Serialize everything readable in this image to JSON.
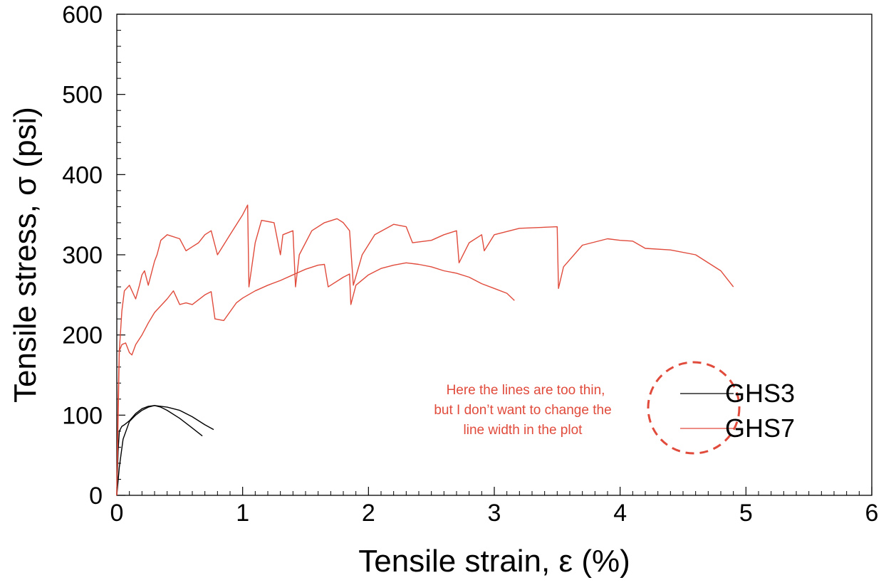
{
  "chart_data": {
    "type": "line",
    "title": "",
    "xlabel": "Tensile strain, ε (%)",
    "ylabel": "Tensile stress, σ (psi)",
    "xlim": [
      0,
      6
    ],
    "ylim": [
      0,
      600
    ],
    "x_ticks": [
      0,
      1,
      2,
      3,
      4,
      5,
      6
    ],
    "y_ticks": [
      0,
      100,
      200,
      300,
      400,
      500,
      600
    ],
    "x_tick_labels": [
      "0",
      "1",
      "2",
      "3",
      "4",
      "5",
      "6"
    ],
    "y_tick_labels": [
      "0",
      "100",
      "200",
      "300",
      "400",
      "500",
      "600"
    ],
    "grid": false,
    "legend_position": "right",
    "legend": [
      "GHS3",
      "GHS7"
    ],
    "colors": {
      "GHS3": "#000000",
      "GHS7": "#e04b3c",
      "annotation": "#e04b3c"
    },
    "annotation": {
      "lines": [
        "Here the lines are too thin,",
        "but I don’t want to change the",
        "line width in the plot"
      ]
    },
    "series": [
      {
        "name": "GHS3",
        "color": "#000000",
        "specimen": 1,
        "x": [
          0,
          0.01,
          0.02,
          0.04,
          0.06,
          0.1,
          0.15,
          0.2,
          0.25,
          0.3,
          0.35,
          0.4,
          0.5,
          0.6,
          0.68
        ],
        "y": [
          0,
          55,
          80,
          86,
          88,
          93,
          102,
          108,
          111,
          112,
          110,
          106,
          96,
          84,
          74
        ]
      },
      {
        "name": "GHS3",
        "color": "#000000",
        "specimen": 2,
        "x": [
          0,
          0.02,
          0.05,
          0.1,
          0.15,
          0.2,
          0.25,
          0.3,
          0.4,
          0.5,
          0.6,
          0.7,
          0.77
        ],
        "y": [
          0,
          35,
          70,
          92,
          100,
          106,
          110,
          112,
          110,
          106,
          98,
          88,
          82
        ]
      },
      {
        "name": "GHS7",
        "color": "#e04b3c",
        "specimen": 1,
        "x": [
          0,
          0.01,
          0.02,
          0.04,
          0.07,
          0.1,
          0.12,
          0.15,
          0.2,
          0.25,
          0.3,
          0.4,
          0.45,
          0.5,
          0.55,
          0.6,
          0.7,
          0.75,
          0.78,
          0.85,
          0.95,
          1.0,
          1.1,
          1.2,
          1.3,
          1.4,
          1.5,
          1.6,
          1.65,
          1.68,
          1.7,
          1.8,
          1.85,
          1.86,
          1.9,
          2.0,
          2.1,
          2.2,
          2.3,
          2.4,
          2.5,
          2.6,
          2.7,
          2.8,
          2.9,
          3.0,
          3.1,
          3.16
        ],
        "y": [
          0,
          120,
          180,
          188,
          190,
          178,
          175,
          188,
          200,
          215,
          228,
          245,
          255,
          238,
          240,
          238,
          250,
          254,
          220,
          218,
          240,
          246,
          255,
          262,
          268,
          275,
          282,
          287,
          288,
          260,
          262,
          272,
          276,
          238,
          262,
          275,
          283,
          287,
          290,
          288,
          285,
          280,
          277,
          272,
          264,
          258,
          252,
          243
        ]
      },
      {
        "name": "GHS7",
        "color": "#e04b3c",
        "specimen": 2,
        "x": [
          0,
          0.02,
          0.04,
          0.06,
          0.1,
          0.15,
          0.18,
          0.2,
          0.22,
          0.25,
          0.3,
          0.32,
          0.35,
          0.4,
          0.5,
          0.55,
          0.6,
          0.65,
          0.7,
          0.75,
          0.8,
          0.82,
          0.9,
          1.0,
          1.04,
          1.05,
          1.1,
          1.15,
          1.25,
          1.3,
          1.32,
          1.4,
          1.42,
          1.45,
          1.55,
          1.65,
          1.75,
          1.8,
          1.85,
          1.88,
          1.95,
          2.05,
          2.2,
          2.3,
          2.35,
          2.5,
          2.6,
          2.7,
          2.72,
          2.8,
          2.9,
          2.92,
          3.0,
          3.2,
          3.5,
          3.51,
          3.55,
          3.7,
          3.9,
          4.0,
          4.1,
          4.2,
          4.4,
          4.6,
          4.8,
          4.9
        ],
        "y": [
          0,
          180,
          230,
          255,
          262,
          245,
          262,
          275,
          280,
          262,
          292,
          300,
          318,
          325,
          320,
          305,
          310,
          315,
          325,
          330,
          300,
          305,
          325,
          350,
          362,
          260,
          315,
          343,
          340,
          300,
          325,
          330,
          260,
          300,
          330,
          340,
          345,
          340,
          330,
          262,
          300,
          325,
          338,
          335,
          315,
          318,
          325,
          330,
          290,
          315,
          325,
          305,
          325,
          333,
          335,
          258,
          285,
          312,
          320,
          318,
          317,
          308,
          306,
          300,
          280,
          260
        ]
      }
    ]
  }
}
